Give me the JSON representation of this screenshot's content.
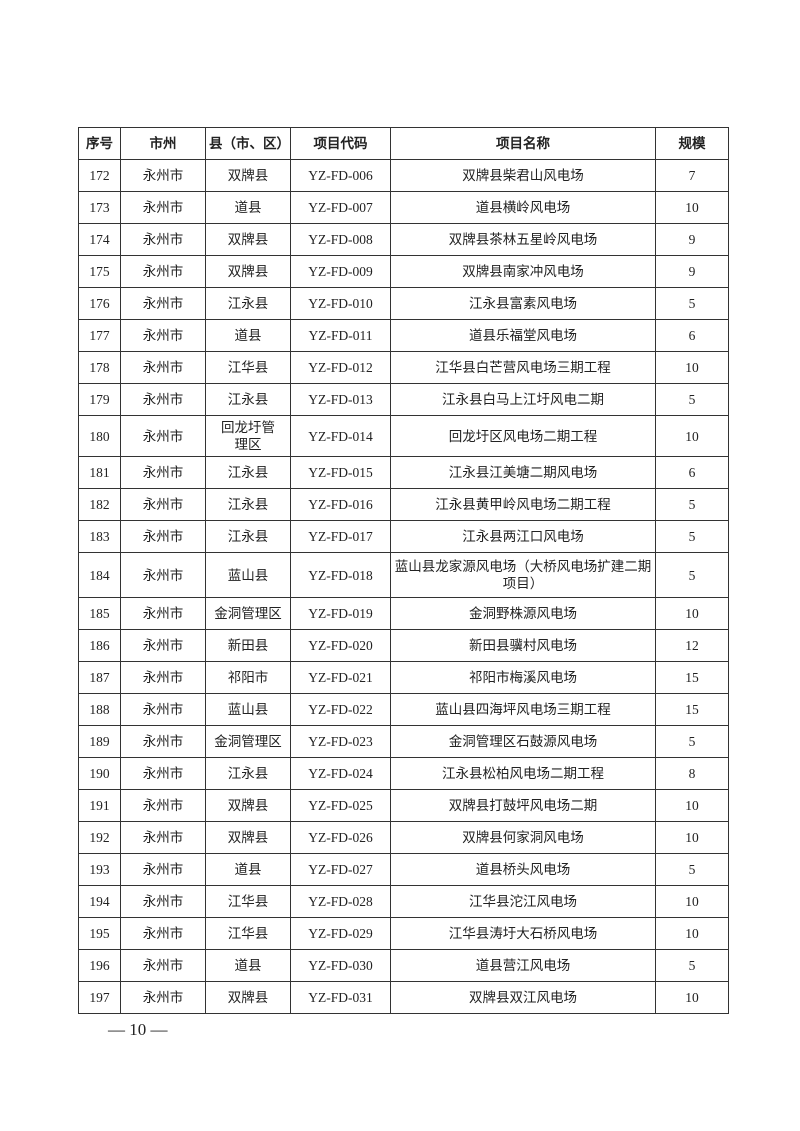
{
  "table": {
    "headers": [
      "序号",
      "市州",
      "县（市、区）",
      "项目代码",
      "项目名称",
      "规模"
    ],
    "rows": [
      [
        "172",
        "永州市",
        "双牌县",
        "YZ-FD-006",
        "双牌县柴君山风电场",
        "7"
      ],
      [
        "173",
        "永州市",
        "道县",
        "YZ-FD-007",
        "道县横岭风电场",
        "10"
      ],
      [
        "174",
        "永州市",
        "双牌县",
        "YZ-FD-008",
        "双牌县茶林五星岭风电场",
        "9"
      ],
      [
        "175",
        "永州市",
        "双牌县",
        "YZ-FD-009",
        "双牌县南家冲风电场",
        "9"
      ],
      [
        "176",
        "永州市",
        "江永县",
        "YZ-FD-010",
        "江永县富素风电场",
        "5"
      ],
      [
        "177",
        "永州市",
        "道县",
        "YZ-FD-011",
        "道县乐福堂风电场",
        "6"
      ],
      [
        "178",
        "永州市",
        "江华县",
        "YZ-FD-012",
        "江华县白芒营风电场三期工程",
        "10"
      ],
      [
        "179",
        "永州市",
        "江永县",
        "YZ-FD-013",
        "江永县白马上江圩风电二期",
        "5"
      ],
      [
        "180",
        "永州市",
        "回龙圩管理区",
        "YZ-FD-014",
        "回龙圩区风电场二期工程",
        "10"
      ],
      [
        "181",
        "永州市",
        "江永县",
        "YZ-FD-015",
        "江永县江美塘二期风电场",
        "6"
      ],
      [
        "182",
        "永州市",
        "江永县",
        "YZ-FD-016",
        "江永县黄甲岭风电场二期工程",
        "5"
      ],
      [
        "183",
        "永州市",
        "江永县",
        "YZ-FD-017",
        "江永县两江口风电场",
        "5"
      ],
      [
        "184",
        "永州市",
        "蓝山县",
        "YZ-FD-018",
        "蓝山县龙家源风电场（大桥风电场扩建二期项目）",
        "5"
      ],
      [
        "185",
        "永州市",
        "金洞管理区",
        "YZ-FD-019",
        "金洞野株源风电场",
        "10"
      ],
      [
        "186",
        "永州市",
        "新田县",
        "YZ-FD-020",
        "新田县骥村风电场",
        "12"
      ],
      [
        "187",
        "永州市",
        "祁阳市",
        "YZ-FD-021",
        "祁阳市梅溪风电场",
        "15"
      ],
      [
        "188",
        "永州市",
        "蓝山县",
        "YZ-FD-022",
        "蓝山县四海坪风电场三期工程",
        "15"
      ],
      [
        "189",
        "永州市",
        "金洞管理区",
        "YZ-FD-023",
        "金洞管理区石鼓源风电场",
        "5"
      ],
      [
        "190",
        "永州市",
        "江永县",
        "YZ-FD-024",
        "江永县松柏风电场二期工程",
        "8"
      ],
      [
        "191",
        "永州市",
        "双牌县",
        "YZ-FD-025",
        "双牌县打鼓坪风电场二期",
        "10"
      ],
      [
        "192",
        "永州市",
        "双牌县",
        "YZ-FD-026",
        "双牌县何家洞风电场",
        "10"
      ],
      [
        "193",
        "永州市",
        "道县",
        "YZ-FD-027",
        "道县桥头风电场",
        "5"
      ],
      [
        "194",
        "永州市",
        "江华县",
        "YZ-FD-028",
        "江华县沱江风电场",
        "10"
      ],
      [
        "195",
        "永州市",
        "江华县",
        "YZ-FD-029",
        "江华县涛圩大石桥风电场",
        "10"
      ],
      [
        "196",
        "永州市",
        "道县",
        "YZ-FD-030",
        "道县营江风电场",
        "5"
      ],
      [
        "197",
        "永州市",
        "双牌县",
        "YZ-FD-031",
        "双牌县双江风电场",
        "10"
      ]
    ]
  },
  "footer": {
    "page_number": "— 10 —"
  }
}
